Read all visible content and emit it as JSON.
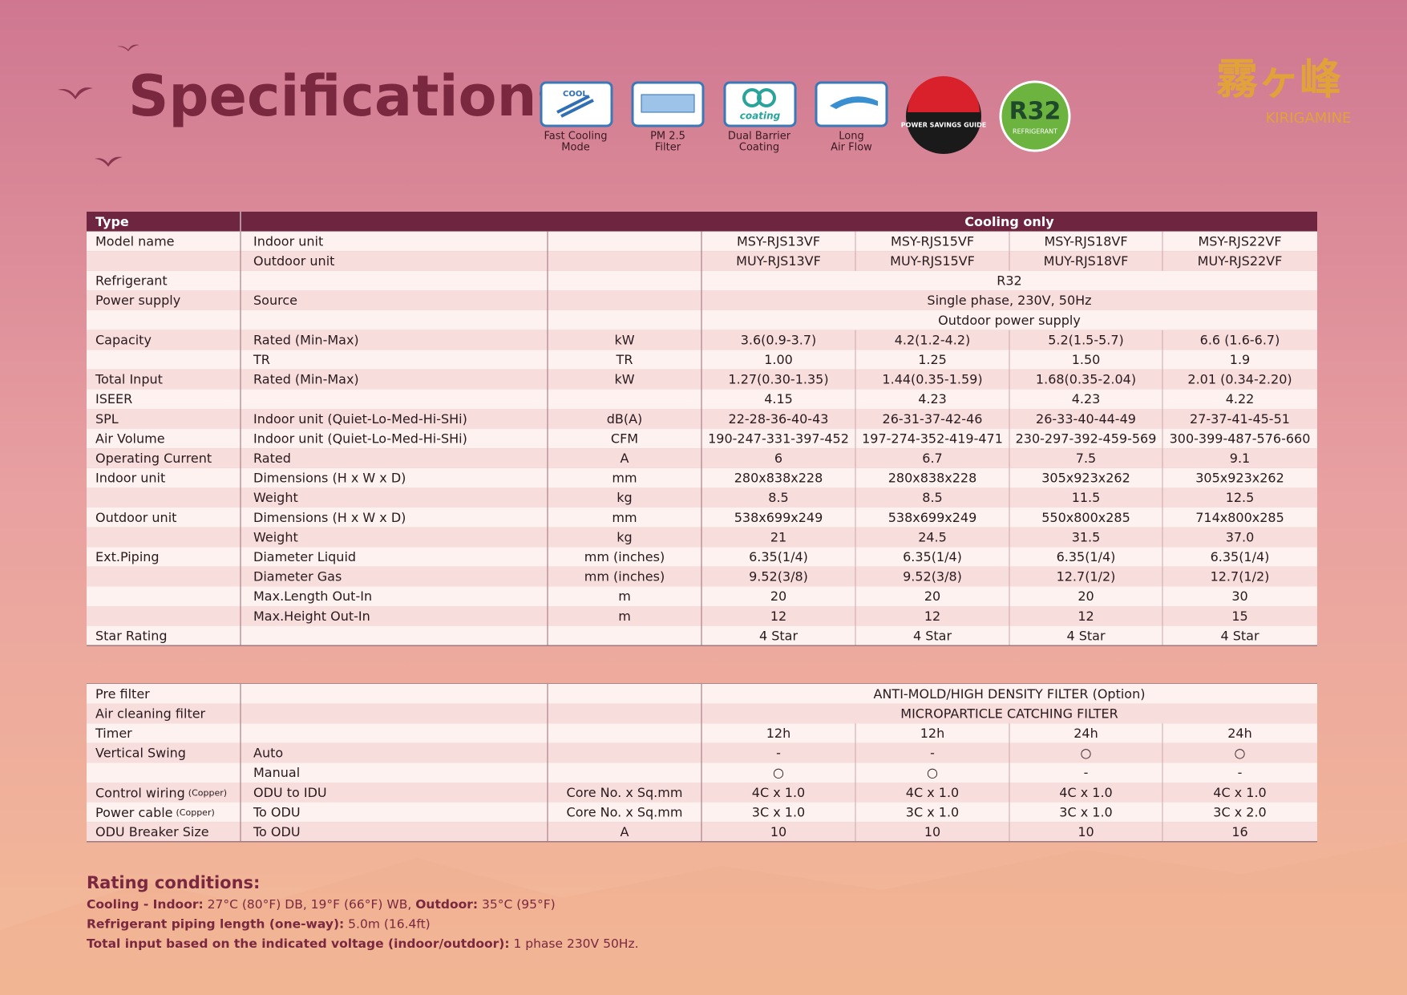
{
  "header": {
    "title": "Specifications",
    "features": [
      {
        "icon_text": "COOL",
        "label": [
          "Fast Cooling",
          "Mode"
        ]
      },
      {
        "icon_text": null,
        "label": [
          "PM 2.5",
          "Filter"
        ]
      },
      {
        "icon_text": "coating",
        "label": [
          "Dual Barrier",
          "Coating"
        ]
      },
      {
        "icon_text": null,
        "label": [
          "Long",
          "Air Flow"
        ]
      }
    ],
    "badge": "POWER SAVINGS GUIDE",
    "refrigerant_badge": {
      "name": "R32",
      "caption": "REFRIGERANT"
    },
    "logo": {
      "mark": "霧ヶ峰",
      "name": "KIRIGAMINE"
    }
  },
  "table": {
    "header": [
      "Type",
      "Cooling only"
    ],
    "rows": [
      [
        "Model name",
        "Indoor unit",
        null,
        "MSY-RJS13VF",
        "MSY-RJS15VF",
        "MSY-RJS18VF",
        "MSY-RJS22VF"
      ],
      [
        null,
        "Outdoor unit",
        null,
        "MUY-RJS13VF",
        "MUY-RJS15VF",
        "MUY-RJS18VF",
        "MUY-RJS22VF"
      ],
      [
        "Refrigerant",
        null,
        null,
        "R32"
      ],
      [
        "Power supply",
        "Source",
        null,
        "Single phase, 230V, 50Hz"
      ],
      [
        null,
        null,
        null,
        "Outdoor power supply"
      ],
      [
        "Capacity",
        "Rated (Min-Max)",
        "kW",
        "3.6(0.9-3.7)",
        "4.2(1.2-4.2)",
        "5.2(1.5-5.7)",
        "6.6 (1.6-6.7)"
      ],
      [
        null,
        "TR",
        "TR",
        "1.00",
        "1.25",
        "1.50",
        "1.9"
      ],
      [
        "Total Input",
        "Rated (Min-Max)",
        "kW",
        "1.27(0.30-1.35)",
        "1.44(0.35-1.59)",
        "1.68(0.35-2.04)",
        "2.01 (0.34-2.20)"
      ],
      [
        "ISEER",
        null,
        null,
        "4.15",
        "4.23",
        "4.23",
        "4.22"
      ],
      [
        "SPL",
        "Indoor unit (Quiet-Lo-Med-Hi-SHi)",
        "dB(A)",
        "22-28-36-40-43",
        "26-31-37-42-46",
        "26-33-40-44-49",
        "27-37-41-45-51"
      ],
      [
        "Air Volume",
        "Indoor unit (Quiet-Lo-Med-Hi-SHi)",
        "CFM",
        "190-247-331-397-452",
        "197-274-352-419-471",
        "230-297-392-459-569",
        "300-399-487-576-660"
      ],
      [
        "Operating Current",
        "Rated",
        "A",
        "6",
        "6.7",
        "7.5",
        "9.1"
      ],
      [
        "Indoor unit",
        "Dimensions (H x W x D)",
        "mm",
        "280x838x228",
        "280x838x228",
        "305x923x262",
        "305x923x262"
      ],
      [
        null,
        "Weight",
        "kg",
        "8.5",
        "8.5",
        "11.5",
        "12.5"
      ],
      [
        "Outdoor unit",
        "Dimensions (H x W x D)",
        "mm",
        "538x699x249",
        "538x699x249",
        "550x800x285",
        "714x800x285"
      ],
      [
        null,
        "Weight",
        "kg",
        "21",
        "24.5",
        "31.5",
        "37.0"
      ],
      [
        "Ext.Piping",
        "Diameter Liquid",
        "mm (inches)",
        "6.35(1/4)",
        "6.35(1/4)",
        "6.35(1/4)",
        "6.35(1/4)"
      ],
      [
        null,
        "Diameter Gas",
        "mm (inches)",
        "9.52(3/8)",
        "9.52(3/8)",
        "12.7(1/2)",
        "12.7(1/2)"
      ],
      [
        null,
        "Max.Length Out-In",
        "m",
        "20",
        "20",
        "20",
        "30"
      ],
      [
        null,
        "Max.Height Out-In",
        "m",
        "12",
        "12",
        "12",
        "15"
      ],
      [
        "Star Rating",
        null,
        null,
        "4 Star",
        "4 Star",
        "4 Star",
        "4 Star"
      ]
    ]
  },
  "table2": {
    "rows": [
      [
        "Pre filter",
        null,
        null,
        "ANTI-MOLD/HIGH DENSITY FILTER (Option)"
      ],
      [
        "Air cleaning filter",
        null,
        null,
        "MICROPARTICLE CATCHING FILTER"
      ],
      [
        "Timer",
        null,
        null,
        "12h",
        "12h",
        "24h",
        "24h"
      ],
      [
        "Vertical Swing",
        "Auto",
        null,
        "-",
        "-",
        "○",
        "○"
      ],
      [
        null,
        "Manual",
        null,
        "○",
        "○",
        "-",
        "-"
      ],
      [
        {
          "text": "Control wiring",
          "note": "(Copper)"
        },
        "ODU to IDU",
        "Core No. x Sq.mm",
        "4C x 1.0",
        "4C x 1.0",
        "4C x 1.0",
        "4C x 1.0"
      ],
      [
        {
          "text": "Power cable",
          "note": "(Copper)"
        },
        "To ODU",
        "Core No. x Sq.mm",
        "3C x 1.0",
        "3C x 1.0",
        "3C x 1.0",
        "3C x 2.0"
      ],
      [
        "ODU Breaker Size",
        "To ODU",
        "A",
        "10",
        "10",
        "10",
        "16"
      ]
    ]
  },
  "rating": {
    "title": "Rating conditions:",
    "lines": [
      [
        {
          "text": "Cooling - Indoor:",
          "bold": true
        },
        {
          "text": " 27°C (80°F) DB, 19°F (66°F) WB, ",
          "bold": false
        },
        {
          "text": "Outdoor:",
          "bold": true
        },
        {
          "text": " 35°C (95°F)",
          "bold": false
        }
      ],
      [
        {
          "text": "Refrigerant piping length (one-way):",
          "bold": true
        },
        {
          "text": " 5.0m (16.4ft)",
          "bold": false
        }
      ],
      [
        {
          "text": "Total input based on the indicated voltage (indoor/outdoor):",
          "bold": true
        },
        {
          "text": " 1 phase 230V 50Hz.",
          "bold": false
        }
      ]
    ]
  }
}
